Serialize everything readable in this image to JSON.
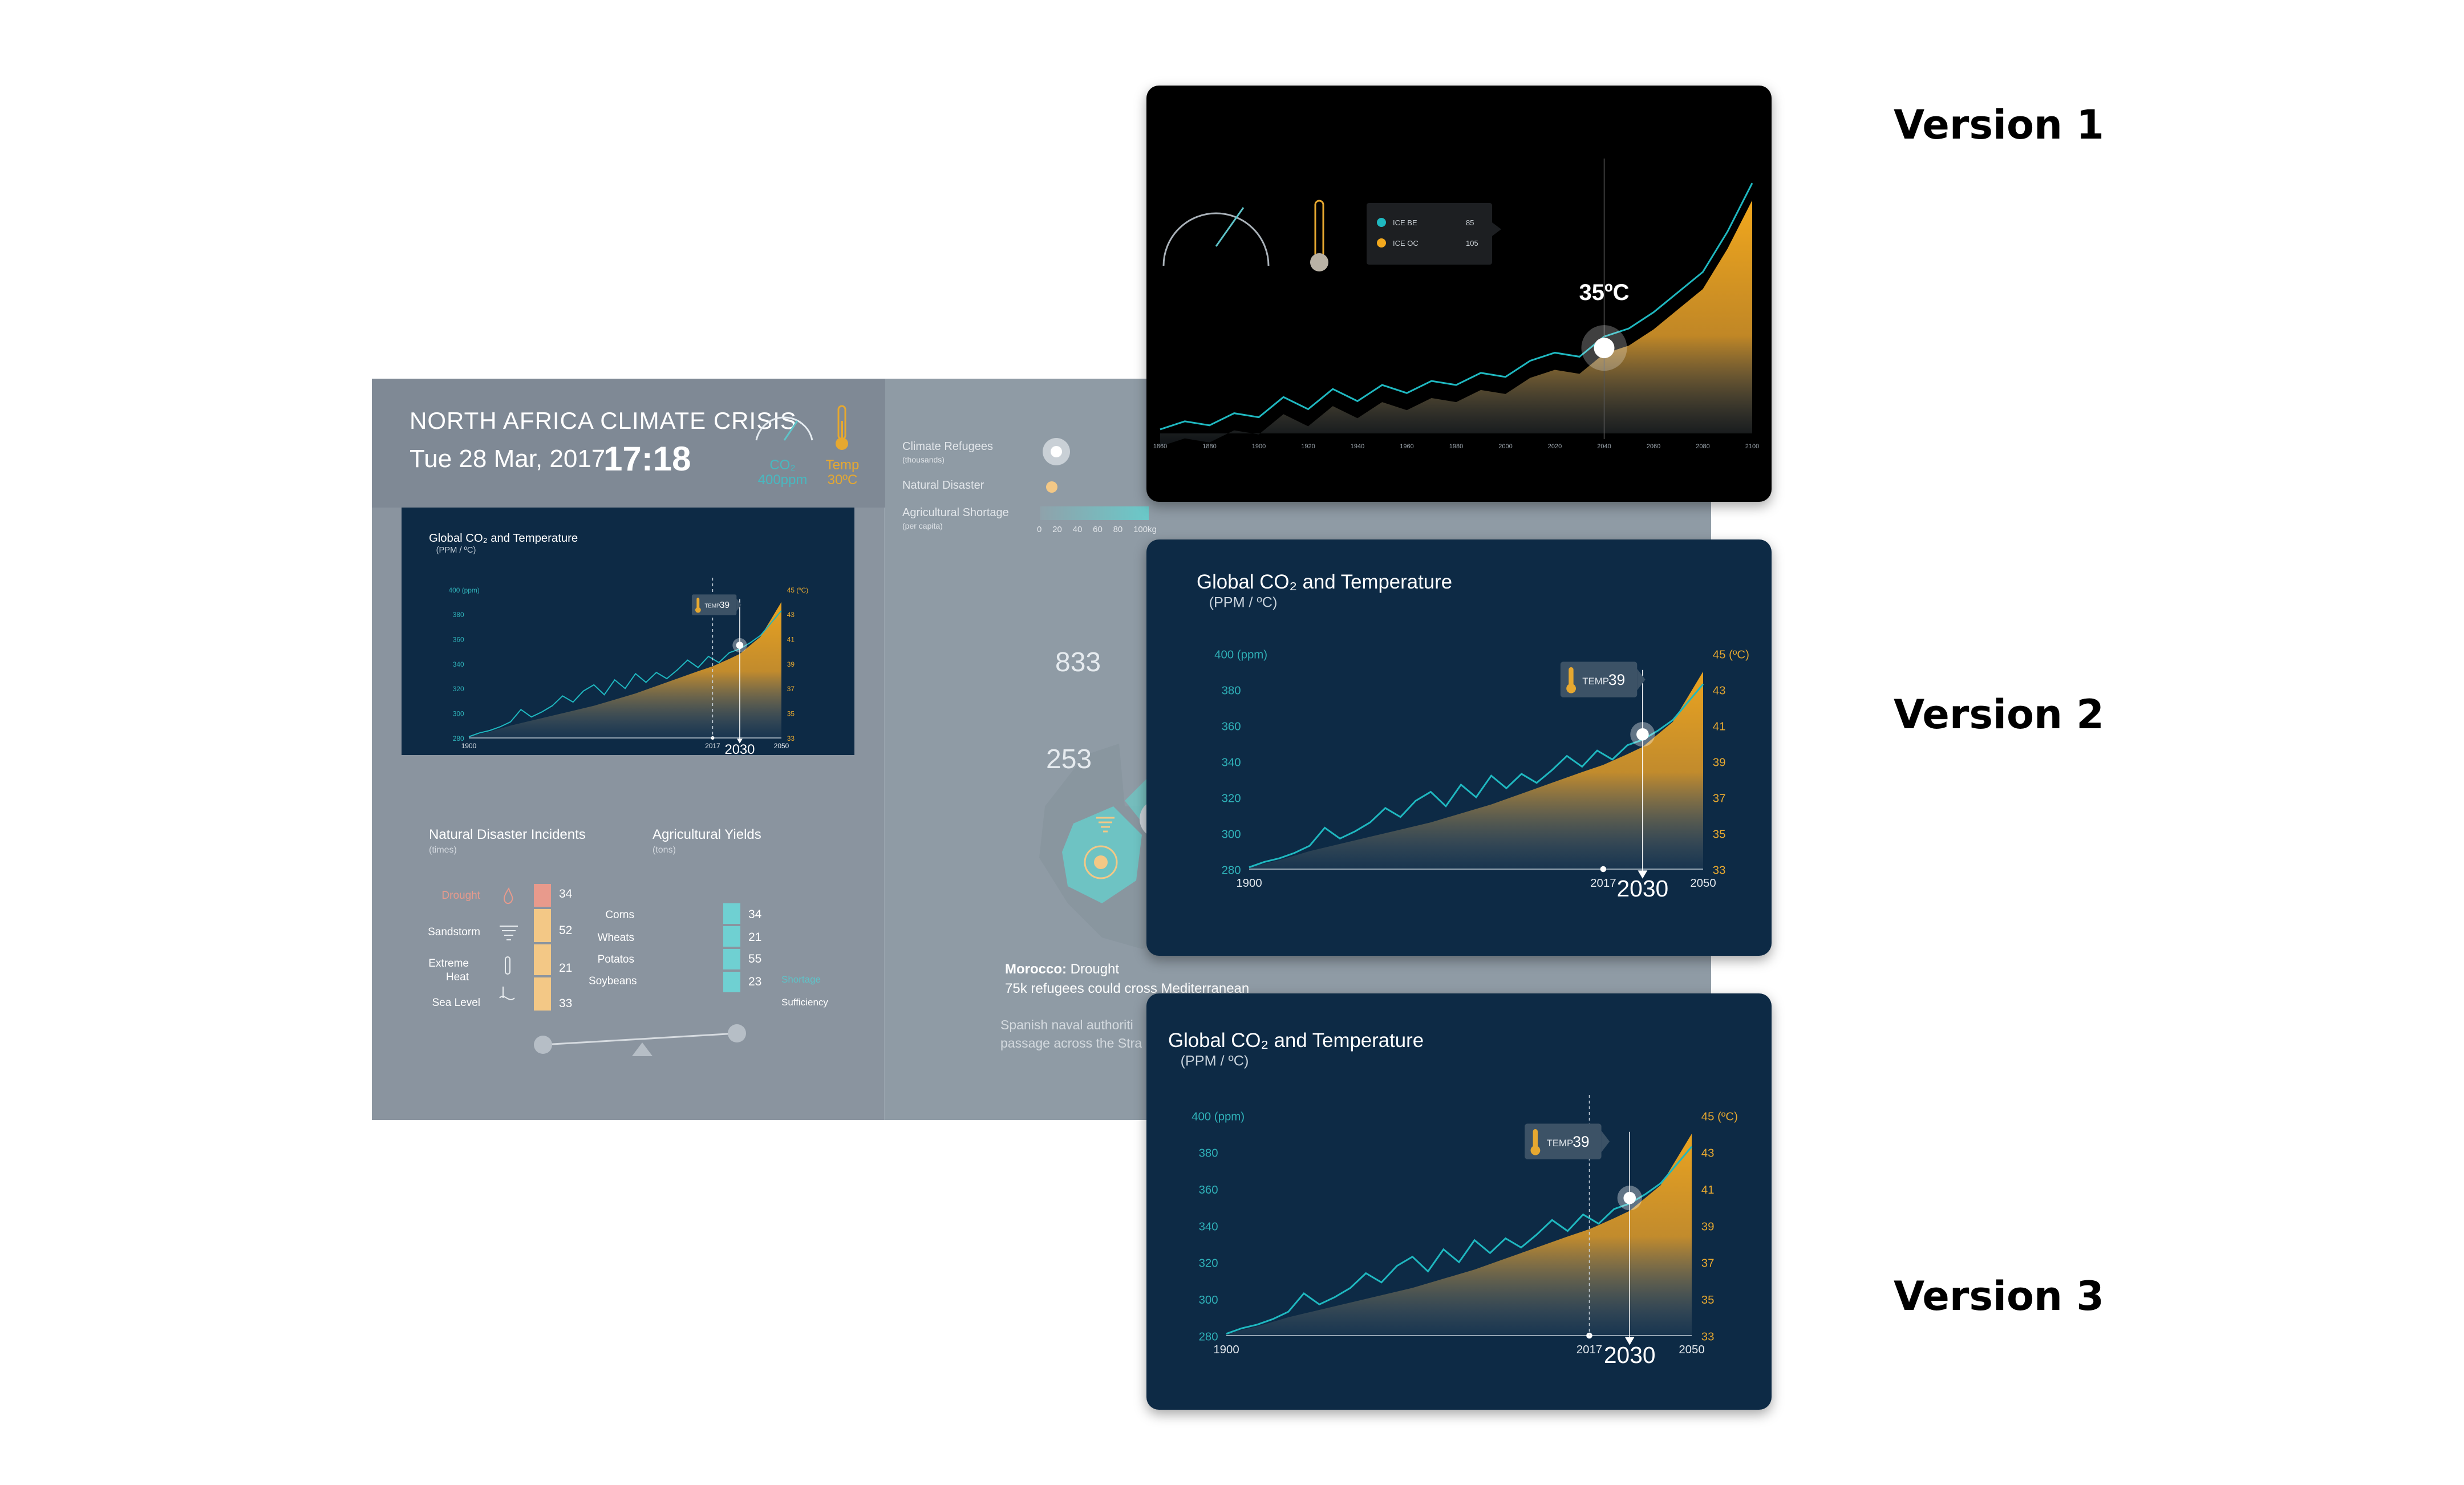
{
  "dashboard": {
    "title": "NORTH AFRICA CLIMATE CRISIS",
    "date": "Tue 28 Mar, 2017",
    "time": "17:18",
    "co2_label": "CO₂",
    "co2_value": "400ppm",
    "temp_label": "Temp",
    "temp_value": "30ºC"
  },
  "legend": {
    "refugees": "Climate Refugees",
    "refugees_sub": "(thousands)",
    "disaster": "Natural Disaster",
    "shortage": "Agricultural Shortage",
    "shortage_sub": "(per capita)",
    "shortage_ticks": [
      "0",
      "20",
      "40",
      "60",
      "80",
      "100kg"
    ]
  },
  "map": {
    "label_833": "833",
    "label_253": "253",
    "morocco_bold": "Morocco:",
    "morocco_text": " Drought",
    "morocco_line2": "75k refugees could cross Mediterranean",
    "spanish_line1": "Spanish naval authoriti",
    "spanish_line2": "passage across the Stra"
  },
  "disasters": {
    "title": "Natural Disaster Incidents",
    "sub": "(times)",
    "items": [
      {
        "label": "Drought",
        "value": "34",
        "color": "#e89a8c"
      },
      {
        "label": "Sandstorm",
        "value": "52",
        "color": "#f3c886"
      },
      {
        "label": "Extreme Heat",
        "value": "21",
        "color": "#f3c886"
      },
      {
        "label": "Sea Level",
        "value": "33",
        "color": "#f3c886"
      }
    ]
  },
  "yields": {
    "title": "Agricultural Yields",
    "sub": "(tons)",
    "items": [
      {
        "label": "Corns",
        "value": "34"
      },
      {
        "label": "Wheats",
        "value": "21"
      },
      {
        "label": "Potatos",
        "value": "55"
      },
      {
        "label": "Soybeans",
        "value": "23"
      }
    ],
    "shortage_label": "Shortage",
    "sufficiency_label": "Sufficiency"
  },
  "versions": [
    "Version 1",
    "Version 2",
    "Version 3"
  ],
  "charts": {
    "title": "Global CO₂ and Temperature",
    "units": "(PPM / ºC)",
    "left_axis_top": "400 (ppm)",
    "right_axis_top": "45 (ºC)",
    "temp_tag": "TEMP",
    "temp_value": "39",
    "year_2030": "2030",
    "v1_temp": "35ºC",
    "v1_legend": [
      {
        "label": "ICE BE",
        "value": "85",
        "color": "#1fb8c0"
      },
      {
        "label": "ICE OC",
        "value": "105",
        "color": "#f2a81d"
      }
    ]
  },
  "chart_data": [
    {
      "type": "line",
      "title": "Global CO₂ and Temperature",
      "subtitle": "(PPM / ºC)",
      "x_ticks": [
        "1900",
        "2017",
        "2050"
      ],
      "y_left_ticks": [
        "400 (ppm)",
        "380",
        "360",
        "340",
        "320",
        "300",
        "280"
      ],
      "y_right_ticks": [
        "45 (ºC)",
        "43",
        "41",
        "39",
        "37",
        "35",
        "33"
      ],
      "y_left_range": [
        280,
        400
      ],
      "y_right_range": [
        33,
        45
      ],
      "marker_year": 2030,
      "marker_temp": 39,
      "series": [
        {
          "color": "#1fb8c0",
          "x": [
            1900,
            1905,
            1910,
            1915,
            1920,
            1925,
            1930,
            1935,
            1940,
            1945,
            1950,
            1955,
            1960,
            1965,
            1970,
            1975,
            1980,
            1985,
            1990,
            1995,
            2000,
            2005,
            2010,
            2015,
            2020,
            2025,
            2030,
            2035,
            2040,
            2045,
            2050
          ],
          "values": [
            281,
            284,
            286,
            289,
            293,
            303,
            297,
            301,
            306,
            314,
            309,
            318,
            323,
            315,
            327,
            320,
            332,
            325,
            333,
            328,
            335,
            343,
            337,
            346,
            341,
            349,
            352,
            357,
            363,
            373,
            383
          ]
        },
        {
          "color": "#f2a81d",
          "x": [
            1900,
            1910,
            1920,
            1930,
            1940,
            1950,
            1960,
            1970,
            1980,
            1990,
            2000,
            2010,
            2017,
            2025,
            2030,
            2040,
            2050
          ],
          "values": [
            281,
            285,
            290,
            294,
            298,
            302,
            306,
            311,
            316,
            322,
            328,
            334,
            338,
            344,
            348,
            362,
            390
          ]
        }
      ]
    },
    {
      "type": "line",
      "x_ticks": [
        "1860",
        "1880",
        "1900",
        "1920",
        "1940",
        "1960",
        "1980",
        "2000",
        "2020",
        "2040",
        "2060",
        "2080",
        "2100"
      ],
      "marker_label": "35ºC",
      "marker_year": 2040,
      "series": [
        {
          "color": "#1fb8c0",
          "x": [
            1860,
            1870,
            1880,
            1890,
            1900,
            1910,
            1920,
            1930,
            1940,
            1950,
            1960,
            1970,
            1980,
            1990,
            2000,
            2010,
            2020,
            2030,
            2040,
            2050,
            2060,
            2070,
            2080,
            2090,
            2100
          ],
          "values": [
            1,
            3,
            2,
            5,
            4,
            9,
            6,
            11,
            8,
            12,
            10,
            13,
            12,
            15,
            14,
            18,
            20,
            19,
            24,
            26,
            30,
            35,
            40,
            50,
            62
          ]
        }
      ]
    }
  ]
}
